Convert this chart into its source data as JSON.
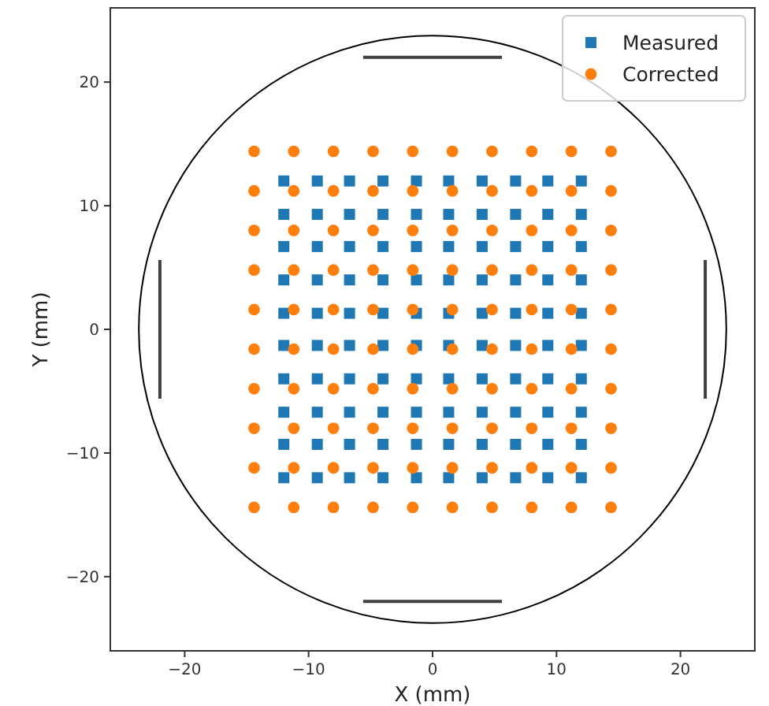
{
  "chart_data": {
    "type": "scatter",
    "xlabel": "X (mm)",
    "ylabel": "Y (mm)",
    "xlim": [
      -26,
      26
    ],
    "ylim": [
      -26,
      26
    ],
    "xticks": [
      {
        "value": -20,
        "label": "−20"
      },
      {
        "value": -10,
        "label": "−10"
      },
      0,
      10,
      20
    ],
    "yticks": [
      {
        "value": -20,
        "label": "−20"
      },
      {
        "value": -10,
        "label": "−10"
      },
      0,
      10,
      20
    ],
    "legend": "top right",
    "series": [
      {
        "type": "line",
        "color": "#404040",
        "x": [
          -5.6,
          5.6
        ],
        "values": [
          22,
          22
        ]
      },
      {
        "type": "line",
        "color": "#404040",
        "x": [
          -5.6,
          5.6
        ],
        "values": [
          -22,
          -22
        ]
      },
      {
        "type": "line",
        "color": "#404040",
        "x": [
          -22,
          -22
        ],
        "values": [
          -5.6,
          5.6
        ]
      },
      {
        "type": "line",
        "color": "#404040",
        "x": [
          22,
          22
        ],
        "values": [
          -5.6,
          5.6
        ]
      },
      {
        "name": "Measured",
        "color": "#1f77b4",
        "marker": "square",
        "x": [
          -12,
          -9.3,
          -6.7,
          -4,
          -1.3,
          1.3,
          4,
          6.7,
          9.3,
          12,
          -12,
          -9.3,
          -6.7,
          -4,
          -1.3,
          1.3,
          4,
          6.7,
          9.3,
          12,
          -12,
          -9.3,
          -6.7,
          -4,
          -1.3,
          1.3,
          4,
          6.7,
          9.3,
          12,
          -12,
          -9.3,
          -6.7,
          -4,
          -1.3,
          1.3,
          4,
          6.7,
          9.3,
          12,
          -12,
          -9.3,
          -6.7,
          -4,
          -1.3,
          1.3,
          4,
          6.7,
          9.3,
          12,
          -12,
          -9.3,
          -6.7,
          -4,
          -1.3,
          1.3,
          4,
          6.7,
          9.3,
          12,
          -12,
          -9.3,
          -6.7,
          -4,
          -1.3,
          1.3,
          4,
          6.7,
          9.3,
          12,
          -12,
          -9.3,
          -6.7,
          -4,
          -1.3,
          1.3,
          4,
          6.7,
          9.3,
          12,
          -12,
          -9.3,
          -6.7,
          -4,
          -1.3,
          1.3,
          4,
          6.7,
          9.3,
          12,
          -12,
          -9.3,
          -6.7,
          -4,
          -1.3,
          1.3,
          4,
          6.7,
          9.3,
          12
        ],
        "values": [
          12,
          12,
          12,
          12,
          12,
          12,
          12,
          12,
          12,
          12,
          9.3,
          9.3,
          9.3,
          9.3,
          9.3,
          9.3,
          9.3,
          9.3,
          9.3,
          9.3,
          6.7,
          6.7,
          6.7,
          6.7,
          6.7,
          6.7,
          6.7,
          6.7,
          6.7,
          6.7,
          4,
          4,
          4,
          4,
          4,
          4,
          4,
          4,
          4,
          4,
          1.3,
          1.3,
          1.3,
          1.3,
          1.3,
          1.3,
          1.3,
          1.3,
          1.3,
          1.3,
          -1.3,
          -1.3,
          -1.3,
          -1.3,
          -1.3,
          -1.3,
          -1.3,
          -1.3,
          -1.3,
          -1.3,
          -4,
          -4,
          -4,
          -4,
          -4,
          -4,
          -4,
          -4,
          -4,
          -4,
          -6.7,
          -6.7,
          -6.7,
          -6.7,
          -6.7,
          -6.7,
          -6.7,
          -6.7,
          -6.7,
          -6.7,
          -9.3,
          -9.3,
          -9.3,
          -9.3,
          -9.3,
          -9.3,
          -9.3,
          -9.3,
          -9.3,
          -9.3,
          -12,
          -12,
          -12,
          -12,
          -12,
          -12,
          -12,
          -12,
          -12,
          -12
        ]
      },
      {
        "name": "Corrected",
        "color": "#ff7f0e",
        "marker": "circle",
        "x": [
          -14.4,
          -11.2,
          -8,
          -4.8,
          -1.6,
          1.6,
          4.8,
          8,
          11.2,
          14.4,
          -14.4,
          -11.2,
          -8,
          -4.8,
          -1.6,
          1.6,
          4.8,
          8,
          11.2,
          14.4,
          -14.4,
          -11.2,
          -8,
          -4.8,
          -1.6,
          1.6,
          4.8,
          8,
          11.2,
          14.4,
          -14.4,
          -11.2,
          -8,
          -4.8,
          -1.6,
          1.6,
          4.8,
          8,
          11.2,
          14.4,
          -14.4,
          -11.2,
          -8,
          -4.8,
          -1.6,
          1.6,
          4.8,
          8,
          11.2,
          14.4,
          -14.4,
          -11.2,
          -8,
          -4.8,
          -1.6,
          1.6,
          4.8,
          8,
          11.2,
          14.4,
          -14.4,
          -11.2,
          -8,
          -4.8,
          -1.6,
          1.6,
          4.8,
          8,
          11.2,
          14.4,
          -14.4,
          -11.2,
          -8,
          -4.8,
          -1.6,
          1.6,
          4.8,
          8,
          11.2,
          14.4,
          -14.4,
          -11.2,
          -8,
          -4.8,
          -1.6,
          1.6,
          4.8,
          8,
          11.2,
          14.4,
          -14.4,
          -11.2,
          -8,
          -4.8,
          -1.6,
          1.6,
          4.8,
          8,
          11.2,
          14.4
        ],
        "values": [
          14.4,
          14.4,
          14.4,
          14.4,
          14.4,
          14.4,
          14.4,
          14.4,
          14.4,
          14.4,
          11.2,
          11.2,
          11.2,
          11.2,
          11.2,
          11.2,
          11.2,
          11.2,
          11.2,
          11.2,
          8,
          8,
          8,
          8,
          8,
          8,
          8,
          8,
          8,
          8,
          4.8,
          4.8,
          4.8,
          4.8,
          4.8,
          4.8,
          4.8,
          4.8,
          4.8,
          4.8,
          1.6,
          1.6,
          1.6,
          1.6,
          1.6,
          1.6,
          1.6,
          1.6,
          1.6,
          1.6,
          -1.6,
          -1.6,
          -1.6,
          -1.6,
          -1.6,
          -1.6,
          -1.6,
          -1.6,
          -1.6,
          -1.6,
          -4.8,
          -4.8,
          -4.8,
          -4.8,
          -4.8,
          -4.8,
          -4.8,
          -4.8,
          -4.8,
          -4.8,
          -8,
          -8,
          -8,
          -8,
          -8,
          -8,
          -8,
          -8,
          -8,
          -8,
          -11.2,
          -11.2,
          -11.2,
          -11.2,
          -11.2,
          -11.2,
          -11.2,
          -11.2,
          -11.2,
          -11.2,
          -14.4,
          -14.4,
          -14.4,
          -14.4,
          -14.4,
          -14.4,
          -14.4,
          -14.4,
          -14.4,
          -14.4
        ]
      }
    ]
  }
}
